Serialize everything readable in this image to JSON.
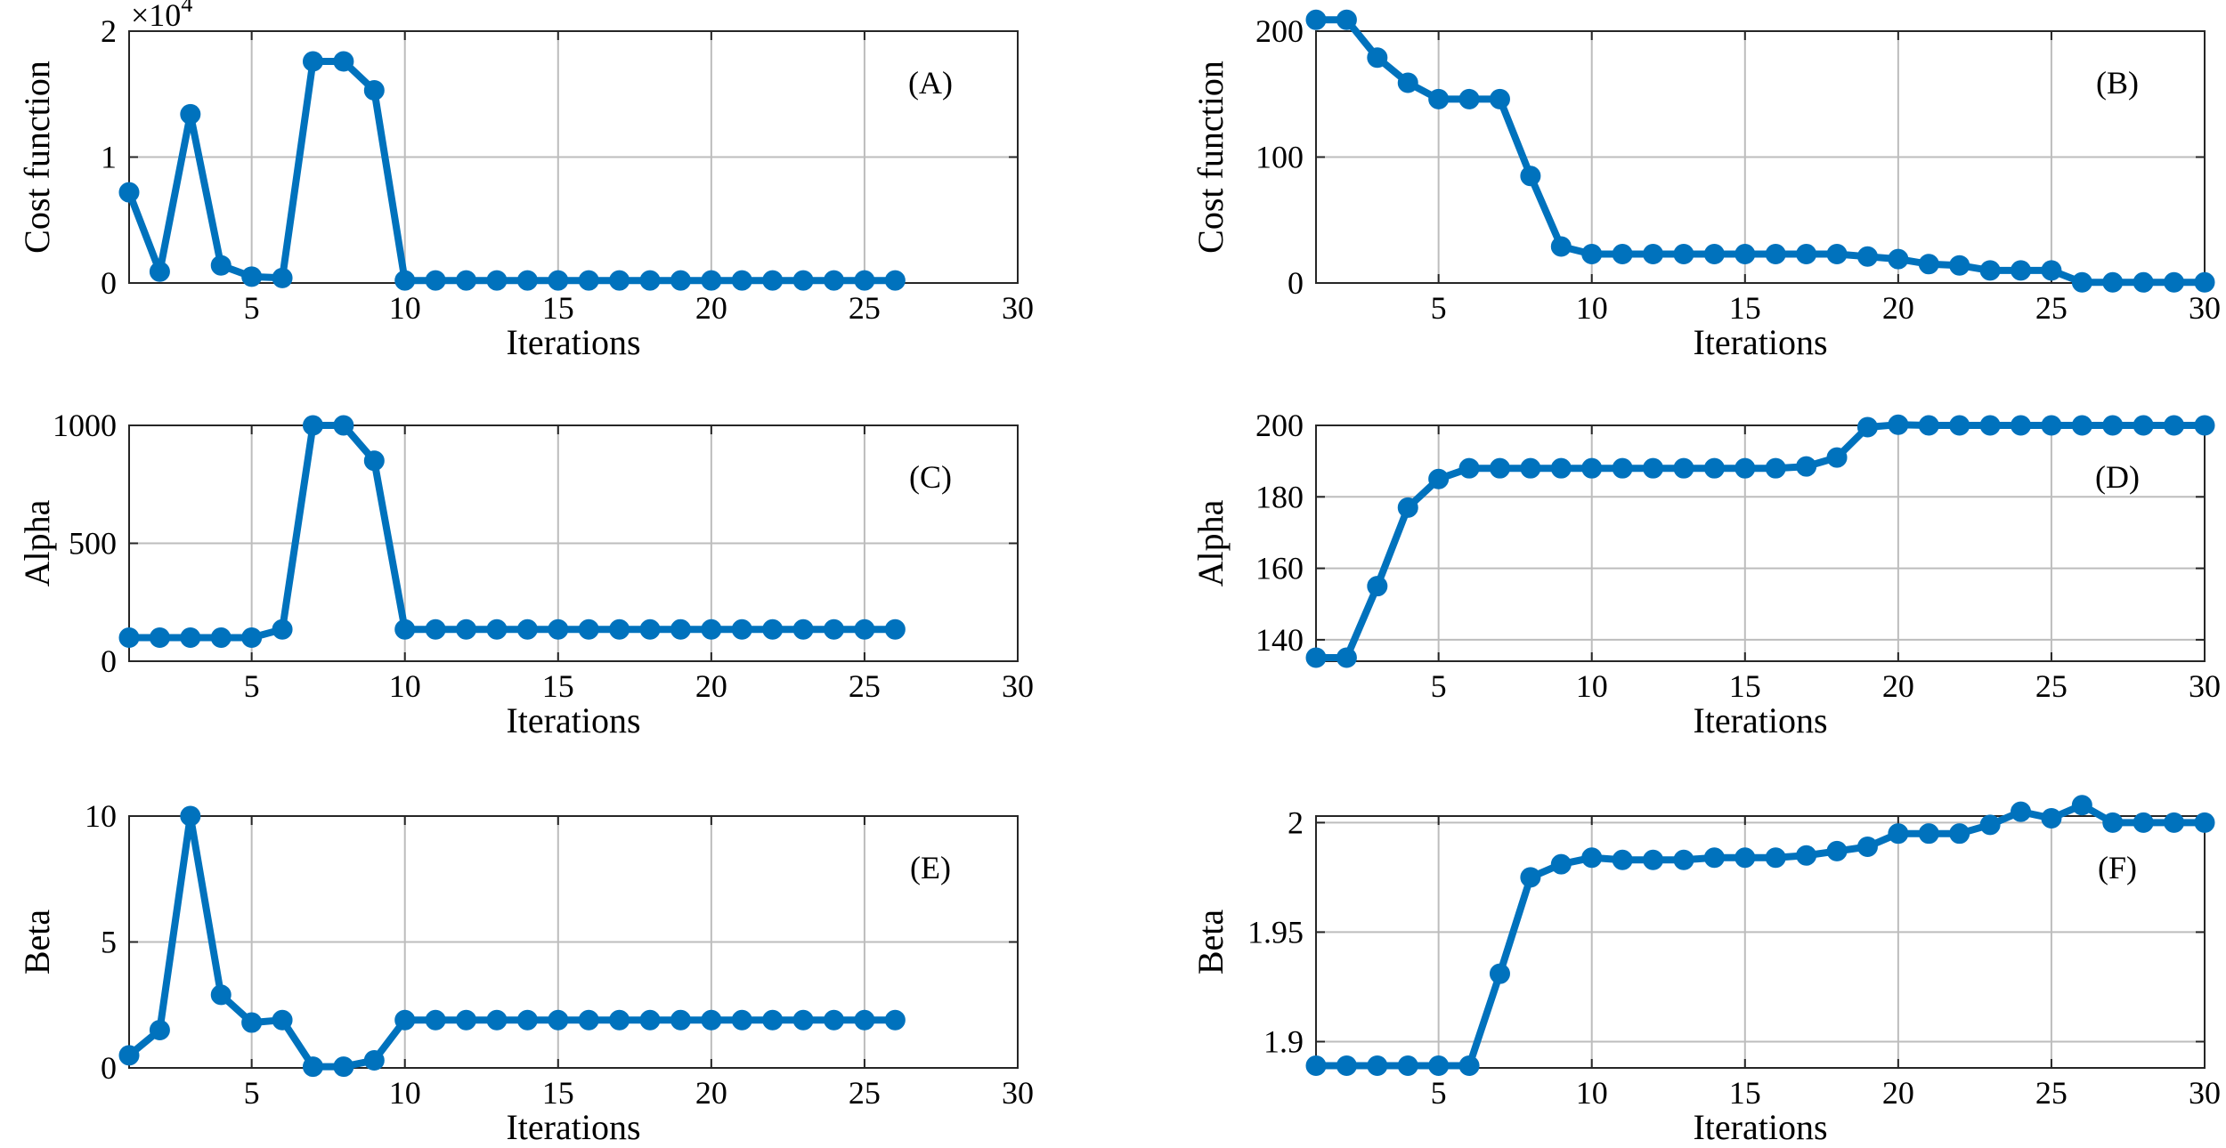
{
  "colors": {
    "series": "#0072BD",
    "grid": "#bdbdbd",
    "axis": "#262626"
  },
  "chart_data": [
    {
      "panel": "(A)",
      "type": "line",
      "xlabel": "Iterations",
      "ylabel": "Cost function",
      "xlim": [
        1,
        30
      ],
      "ylim": [
        0,
        20000
      ],
      "xticks": [
        5,
        10,
        15,
        20,
        25,
        30
      ],
      "yticks": [
        0,
        10000,
        20000
      ],
      "ytick_labels": [
        "0",
        "1",
        "2"
      ],
      "y_exponent": {
        "base": "×10",
        "power": "4"
      },
      "grid": true,
      "x": [
        1,
        2,
        3,
        4,
        5,
        6,
        7,
        8,
        9,
        10,
        11,
        12,
        13,
        14,
        15,
        16,
        17,
        18,
        19,
        20,
        21,
        22,
        23,
        24,
        25,
        26
      ],
      "values": [
        7200,
        900,
        13400,
        1400,
        500,
        400,
        17600,
        17600,
        15300,
        200,
        200,
        200,
        200,
        200,
        200,
        200,
        200,
        200,
        200,
        200,
        200,
        200,
        200,
        200,
        200,
        200
      ]
    },
    {
      "panel": "(B)",
      "type": "line",
      "xlabel": "Iterations",
      "ylabel": "Cost function",
      "xlim": [
        1,
        30
      ],
      "ylim": [
        0,
        200
      ],
      "xticks": [
        5,
        10,
        15,
        20,
        25,
        30
      ],
      "yticks": [
        0,
        100,
        200
      ],
      "ytick_labels": [
        "0",
        "100",
        "200"
      ],
      "grid": true,
      "x": [
        1,
        2,
        3,
        4,
        5,
        6,
        7,
        8,
        9,
        10,
        11,
        12,
        13,
        14,
        15,
        16,
        17,
        18,
        19,
        20,
        21,
        22,
        23,
        24,
        25,
        26,
        27,
        28,
        29,
        30
      ],
      "values": [
        209,
        209,
        179,
        159,
        146,
        146,
        146,
        85,
        29,
        23,
        23,
        23,
        23,
        23,
        23,
        23,
        23,
        23,
        21,
        19,
        15,
        14,
        10,
        10,
        10,
        0.5,
        0.5,
        0.5,
        0.5,
        0.5
      ]
    },
    {
      "panel": "(C)",
      "type": "line",
      "xlabel": "Iterations",
      "ylabel": "Alpha",
      "xlim": [
        1,
        30
      ],
      "ylim": [
        0,
        1000
      ],
      "xticks": [
        5,
        10,
        15,
        20,
        25,
        30
      ],
      "yticks": [
        0,
        500,
        1000
      ],
      "ytick_labels": [
        "0",
        "500",
        "1000"
      ],
      "grid": true,
      "x": [
        1,
        2,
        3,
        4,
        5,
        6,
        7,
        8,
        9,
        10,
        11,
        12,
        13,
        14,
        15,
        16,
        17,
        18,
        19,
        20,
        21,
        22,
        23,
        24,
        25,
        26
      ],
      "values": [
        100,
        100,
        100,
        100,
        100,
        135,
        1000,
        1000,
        850,
        135,
        135,
        135,
        135,
        135,
        135,
        135,
        135,
        135,
        135,
        135,
        135,
        135,
        135,
        135,
        135,
        135
      ]
    },
    {
      "panel": "(D)",
      "type": "line",
      "xlabel": "Iterations",
      "ylabel": "Alpha",
      "xlim": [
        1,
        30
      ],
      "ylim": [
        134,
        200
      ],
      "xticks": [
        5,
        10,
        15,
        20,
        25,
        30
      ],
      "yticks": [
        140,
        160,
        180,
        200
      ],
      "ytick_labels": [
        "140",
        "160",
        "180",
        "200"
      ],
      "grid": true,
      "x": [
        1,
        2,
        3,
        4,
        5,
        6,
        7,
        8,
        9,
        10,
        11,
        12,
        13,
        14,
        15,
        16,
        17,
        18,
        19,
        20,
        21,
        22,
        23,
        24,
        25,
        26,
        27,
        28,
        29,
        30
      ],
      "values": [
        135,
        135,
        155,
        177,
        185,
        188,
        188,
        188,
        188,
        188,
        188,
        188,
        188,
        188,
        188,
        188,
        188.5,
        191,
        199.5,
        200.2,
        200,
        200,
        200,
        200,
        200,
        200,
        200,
        200,
        200,
        200
      ]
    },
    {
      "panel": "(E)",
      "type": "line",
      "xlabel": "Iterations",
      "ylabel": "Beta",
      "xlim": [
        1,
        30
      ],
      "ylim": [
        0,
        10
      ],
      "xticks": [
        5,
        10,
        15,
        20,
        25,
        30
      ],
      "yticks": [
        0,
        5,
        10
      ],
      "ytick_labels": [
        "0",
        "5",
        "10"
      ],
      "grid": true,
      "x": [
        1,
        2,
        3,
        4,
        5,
        6,
        7,
        8,
        9,
        10,
        11,
        12,
        13,
        14,
        15,
        16,
        17,
        18,
        19,
        20,
        21,
        22,
        23,
        24,
        25,
        26
      ],
      "values": [
        0.5,
        1.5,
        10,
        2.9,
        1.8,
        1.9,
        0.05,
        0.05,
        0.3,
        1.9,
        1.9,
        1.9,
        1.9,
        1.9,
        1.9,
        1.9,
        1.9,
        1.9,
        1.9,
        1.9,
        1.9,
        1.9,
        1.9,
        1.9,
        1.9,
        1.9
      ]
    },
    {
      "panel": "(F)",
      "type": "line",
      "xlabel": "Iterations",
      "ylabel": "Beta",
      "xlim": [
        1,
        30
      ],
      "ylim": [
        1.888,
        2.003
      ],
      "xticks": [
        5,
        10,
        15,
        20,
        25,
        30
      ],
      "yticks": [
        1.9,
        1.95,
        2
      ],
      "ytick_labels": [
        "1.9",
        "1.95",
        "2"
      ],
      "grid": true,
      "x": [
        1,
        2,
        3,
        4,
        5,
        6,
        7,
        8,
        9,
        10,
        11,
        12,
        13,
        14,
        15,
        16,
        17,
        18,
        19,
        20,
        21,
        22,
        23,
        24,
        25,
        26,
        27,
        28,
        29,
        30
      ],
      "values": [
        1.889,
        1.889,
        1.889,
        1.889,
        1.889,
        1.889,
        1.931,
        1.975,
        1.981,
        1.984,
        1.983,
        1.983,
        1.983,
        1.984,
        1.984,
        1.984,
        1.985,
        1.987,
        1.989,
        1.995,
        1.995,
        1.995,
        1.999,
        2.005,
        2.002,
        2.008,
        2.0,
        2.0,
        2.0,
        2.0
      ]
    }
  ]
}
